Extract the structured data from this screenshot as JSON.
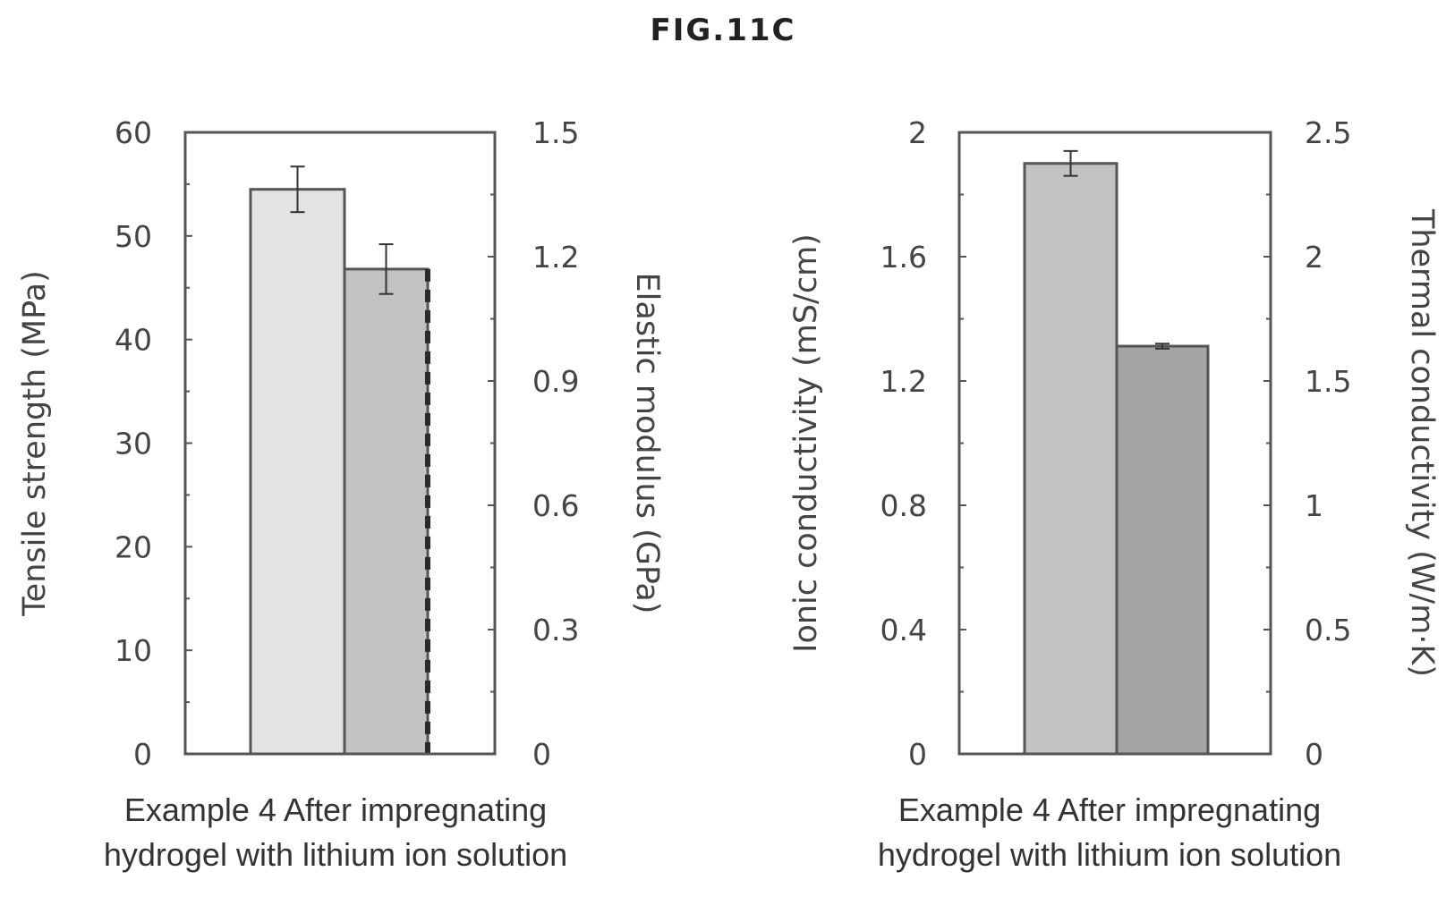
{
  "figure": {
    "title": "FIG.11C"
  },
  "colors": {
    "frame": "#555555",
    "bar_light": "#e3e3e3",
    "bar_medium": "#c2c2c2",
    "bar_dark": "#a4a4a4",
    "dashed_edge": "#2a2a2a"
  },
  "chart_data": [
    {
      "type": "bar",
      "title": "",
      "category_label_lines": [
        "Example 4 After impregnating",
        "hydrogel with lithium ion solution"
      ],
      "left_axis": {
        "label": "Tensile strength (MPa)",
        "ylim": [
          0,
          60
        ],
        "ticks": [
          0,
          10,
          20,
          30,
          40,
          50,
          60
        ],
        "tick_labels": [
          "0",
          "10",
          "20",
          "30",
          "40",
          "50",
          "60"
        ]
      },
      "right_axis": {
        "label": "Elastic modulus (GPa)",
        "ylim": [
          0,
          1.5
        ],
        "ticks": [
          0,
          0.3,
          0.6,
          0.9,
          1.2,
          1.5
        ],
        "tick_labels": [
          "0",
          "0.3",
          "0.6",
          "0.9",
          "1.2",
          "1.5"
        ]
      },
      "series": [
        {
          "axis": "left",
          "value": 54.5,
          "error": 2.2,
          "color": "#e3e3e3"
        },
        {
          "axis": "right",
          "value": 1.17,
          "error": 0.06,
          "color": "#c2c2c2",
          "dashed_right_edge": true
        }
      ]
    },
    {
      "type": "bar",
      "title": "",
      "category_label_lines": [
        "Example 4 After impregnating",
        "hydrogel with lithium ion solution"
      ],
      "left_axis": {
        "label": "Ionic conductivity (mS/cm)",
        "ylim": [
          0,
          2
        ],
        "ticks": [
          0,
          0.4,
          0.8,
          1.2,
          1.6,
          2
        ],
        "tick_labels": [
          "0",
          "0.4",
          "0.8",
          "1.2",
          "1.6",
          "2"
        ]
      },
      "right_axis": {
        "label": "Thermal conductivity (W/m·K)",
        "ylim": [
          0,
          2.5
        ],
        "ticks": [
          0,
          0.5,
          1,
          1.5,
          2,
          2.5
        ],
        "tick_labels": [
          "0",
          "0.5",
          "1",
          "1.5",
          "2",
          "2.5"
        ]
      },
      "series": [
        {
          "axis": "left",
          "value": 1.9,
          "error": 0.04,
          "color": "#c2c2c2"
        },
        {
          "axis": "right",
          "value": 1.64,
          "error": 0.01,
          "color": "#a4a4a4"
        }
      ]
    }
  ]
}
